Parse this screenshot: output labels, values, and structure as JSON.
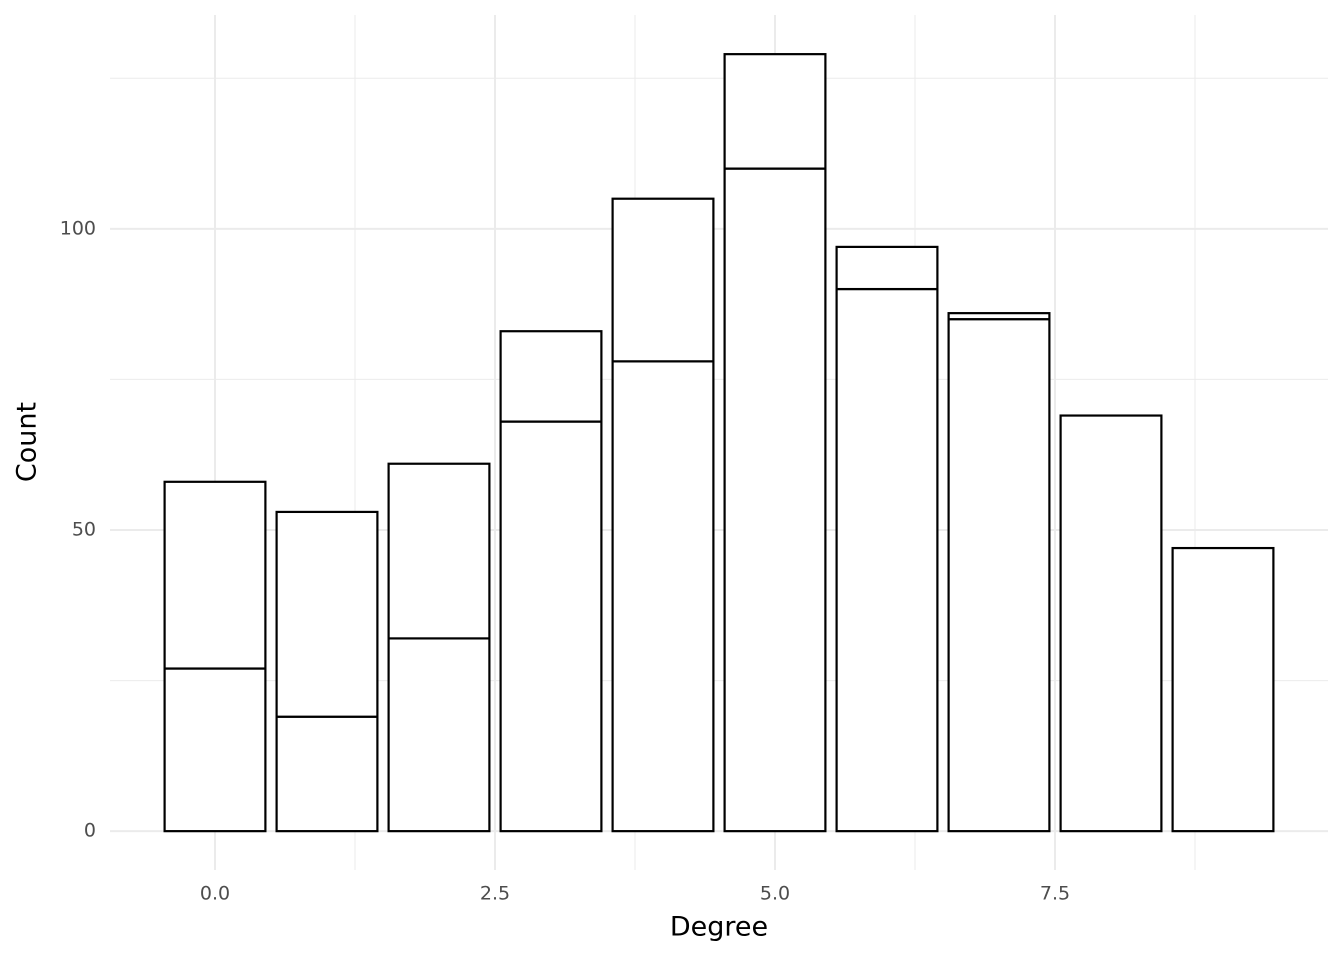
{
  "chart_data": {
    "type": "bar",
    "stacked": true,
    "x_label": "Degree",
    "y_label": "Count",
    "x": [
      0,
      1,
      2,
      3,
      4,
      5,
      6,
      7,
      8,
      9
    ],
    "series": [
      {
        "color": "#ffffff",
        "values": [
          27,
          19,
          32,
          68,
          78,
          110,
          90,
          85,
          69,
          47
        ]
      },
      {
        "color": "#ffffff",
        "values": [
          31,
          34,
          29,
          15,
          27,
          19,
          7,
          1,
          0,
          0
        ]
      }
    ],
    "edge_color": "#000000",
    "xlim": [
      -0.9375,
      9.9375
    ],
    "ylim": [
      -6.45,
      135.5
    ],
    "xticks": [
      {
        "value": 0,
        "label": "0.0"
      },
      2.5,
      {
        "value": 5,
        "label": "5.0"
      },
      7.5
    ],
    "yticks": [
      0,
      50,
      100
    ],
    "minor_xticks": [
      1.25,
      3.75,
      6.25,
      8.75
    ],
    "minor_yticks": [
      25,
      75,
      125
    ],
    "grid": true
  }
}
